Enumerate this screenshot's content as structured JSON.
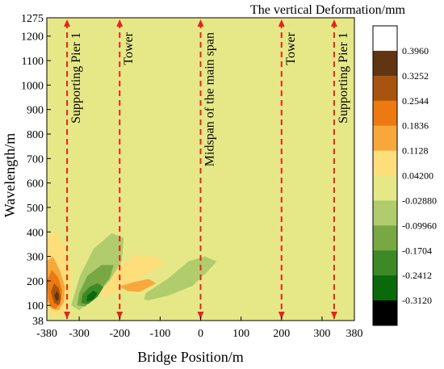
{
  "chart_data": {
    "type": "heatmap",
    "title": "The vertical Deformation/mm",
    "xlabel": "Bridge Position/m",
    "ylabel": "Wavelength/m",
    "xlim": [
      -380,
      380
    ],
    "ylim": [
      38,
      1275
    ],
    "xticks": [
      {
        "value": -380,
        "label": "-380"
      },
      {
        "value": -300,
        "label": "-300"
      },
      {
        "value": -200,
        "label": "-200"
      },
      {
        "value": -100,
        "label": "-100"
      },
      {
        "value": 0,
        "label": "0"
      },
      {
        "value": 100,
        "label": "100"
      },
      {
        "value": 200,
        "label": "200"
      },
      {
        "value": 300,
        "label": "300"
      },
      {
        "value": 380,
        "label": "380"
      }
    ],
    "yticks": [
      {
        "value": 38,
        "label": "38"
      },
      {
        "value": 100,
        "label": "100"
      },
      {
        "value": 200,
        "label": "200"
      },
      {
        "value": 300,
        "label": "300"
      },
      {
        "value": 400,
        "label": "400"
      },
      {
        "value": 500,
        "label": "500"
      },
      {
        "value": 600,
        "label": "600"
      },
      {
        "value": 700,
        "label": "700"
      },
      {
        "value": 800,
        "label": "800"
      },
      {
        "value": 900,
        "label": "900"
      },
      {
        "value": 1000,
        "label": "1000"
      },
      {
        "value": 1100,
        "label": "1100"
      },
      {
        "value": 1200,
        "label": "1200"
      },
      {
        "value": 1275,
        "label": "1275"
      }
    ],
    "background_color": "#e6e888",
    "colorbar": {
      "boundaries": [
        "0.3960",
        "0.3252",
        "0.2544",
        "0.1836",
        "0.1128",
        "0.04200",
        "-0.02880",
        "-0.09960",
        "-0.1704",
        "-0.2412",
        "-0.3120"
      ],
      "colors": [
        "#ffffff",
        "#613511",
        "#a8540f",
        "#ec7a10",
        "#f8a83b",
        "#fdde7a",
        "#e6e888",
        "#b0cc6c",
        "#78a843",
        "#3c8926",
        "#0a6a0a",
        "#000000"
      ]
    },
    "markers": [
      {
        "x": -330,
        "label": "Supporting Pier 1"
      },
      {
        "x": -200,
        "label": "Tower"
      },
      {
        "x": 0,
        "label": "Midspan of the main span"
      },
      {
        "x": 200,
        "label": "Tower"
      },
      {
        "x": 330,
        "label": "Supporting Pier 1"
      }
    ],
    "marker_color": "#e8231c",
    "regions": [
      {
        "level": 0.1128,
        "color": "#fdde7a",
        "points": [
          [
            -380,
            85
          ],
          [
            -380,
            385
          ],
          [
            -355,
            395
          ],
          [
            -335,
            340
          ],
          [
            -320,
            250
          ],
          [
            -320,
            170
          ],
          [
            -328,
            100
          ],
          [
            -345,
            60
          ],
          [
            -365,
            55
          ]
        ]
      },
      {
        "level": 0.1836,
        "color": "#f8a83b",
        "points": [
          [
            -380,
            120
          ],
          [
            -380,
            280
          ],
          [
            -365,
            300
          ],
          [
            -347,
            240
          ],
          [
            -335,
            175
          ],
          [
            -338,
            115
          ],
          [
            -350,
            80
          ],
          [
            -368,
            85
          ]
        ]
      },
      {
        "level": 0.2544,
        "color": "#ec7a10",
        "points": [
          [
            -376,
            125
          ],
          [
            -380,
            200
          ],
          [
            -368,
            245
          ],
          [
            -352,
            215
          ],
          [
            -342,
            160
          ],
          [
            -346,
            110
          ],
          [
            -358,
            85
          ],
          [
            -370,
            95
          ]
        ]
      },
      {
        "level": 0.3252,
        "color": "#a8540f",
        "points": [
          [
            -362,
            110
          ],
          [
            -370,
            155
          ],
          [
            -362,
            190
          ],
          [
            -350,
            170
          ],
          [
            -345,
            130
          ],
          [
            -350,
            100
          ]
        ]
      },
      {
        "level": 0.396,
        "color": "#613511",
        "points": [
          [
            -357,
            118
          ],
          [
            -361,
            140
          ],
          [
            -356,
            158
          ],
          [
            -350,
            145
          ],
          [
            -351,
            122
          ]
        ]
      },
      {
        "level": 0.1128,
        "color": "#fdde7a",
        "points": [
          [
            -240,
            130
          ],
          [
            -200,
            160
          ],
          [
            -160,
            200
          ],
          [
            -120,
            240
          ],
          [
            -90,
            270
          ],
          [
            -110,
            300
          ],
          [
            -160,
            305
          ],
          [
            -205,
            260
          ],
          [
            -235,
            200
          ],
          [
            -252,
            155
          ]
        ]
      },
      {
        "level": 0.1836,
        "color": "#f8a83b",
        "points": [
          [
            -150,
            155
          ],
          [
            -110,
            190
          ],
          [
            -128,
            208
          ],
          [
            -165,
            195
          ],
          [
            -200,
            178
          ],
          [
            -180,
            158
          ]
        ]
      },
      {
        "level": -0.0288,
        "color": "#b0cc6c",
        "points": [
          [
            -320,
            100
          ],
          [
            -298,
            220
          ],
          [
            -265,
            330
          ],
          [
            -220,
            395
          ],
          [
            -190,
            375
          ],
          [
            -195,
            280
          ],
          [
            -225,
            200
          ],
          [
            -265,
            130
          ],
          [
            -300,
            80
          ]
        ]
      },
      {
        "level": -0.0996,
        "color": "#78a843",
        "points": [
          [
            -305,
            100
          ],
          [
            -300,
            150
          ],
          [
            -280,
            220
          ],
          [
            -245,
            265
          ],
          [
            -215,
            265
          ],
          [
            -225,
            210
          ],
          [
            -255,
            150
          ],
          [
            -285,
            95
          ]
        ]
      },
      {
        "level": -0.1704,
        "color": "#3c8926",
        "points": [
          [
            -295,
            110
          ],
          [
            -292,
            145
          ],
          [
            -275,
            175
          ],
          [
            -255,
            190
          ],
          [
            -240,
            175
          ],
          [
            -255,
            135
          ],
          [
            -278,
            105
          ]
        ]
      },
      {
        "level": -0.2412,
        "color": "#0a6a0a",
        "points": [
          [
            -282,
            115
          ],
          [
            -280,
            140
          ],
          [
            -265,
            160
          ],
          [
            -255,
            150
          ],
          [
            -265,
            122
          ]
        ]
      },
      {
        "level": -0.0288,
        "color": "#b0cc6c",
        "points": [
          [
            -130,
            120
          ],
          [
            -80,
            140
          ],
          [
            -20,
            180
          ],
          [
            15,
            235
          ],
          [
            40,
            280
          ],
          [
            10,
            300
          ],
          [
            -30,
            280
          ],
          [
            -80,
            210
          ],
          [
            -135,
            150
          ],
          [
            -140,
            125
          ]
        ]
      }
    ]
  }
}
